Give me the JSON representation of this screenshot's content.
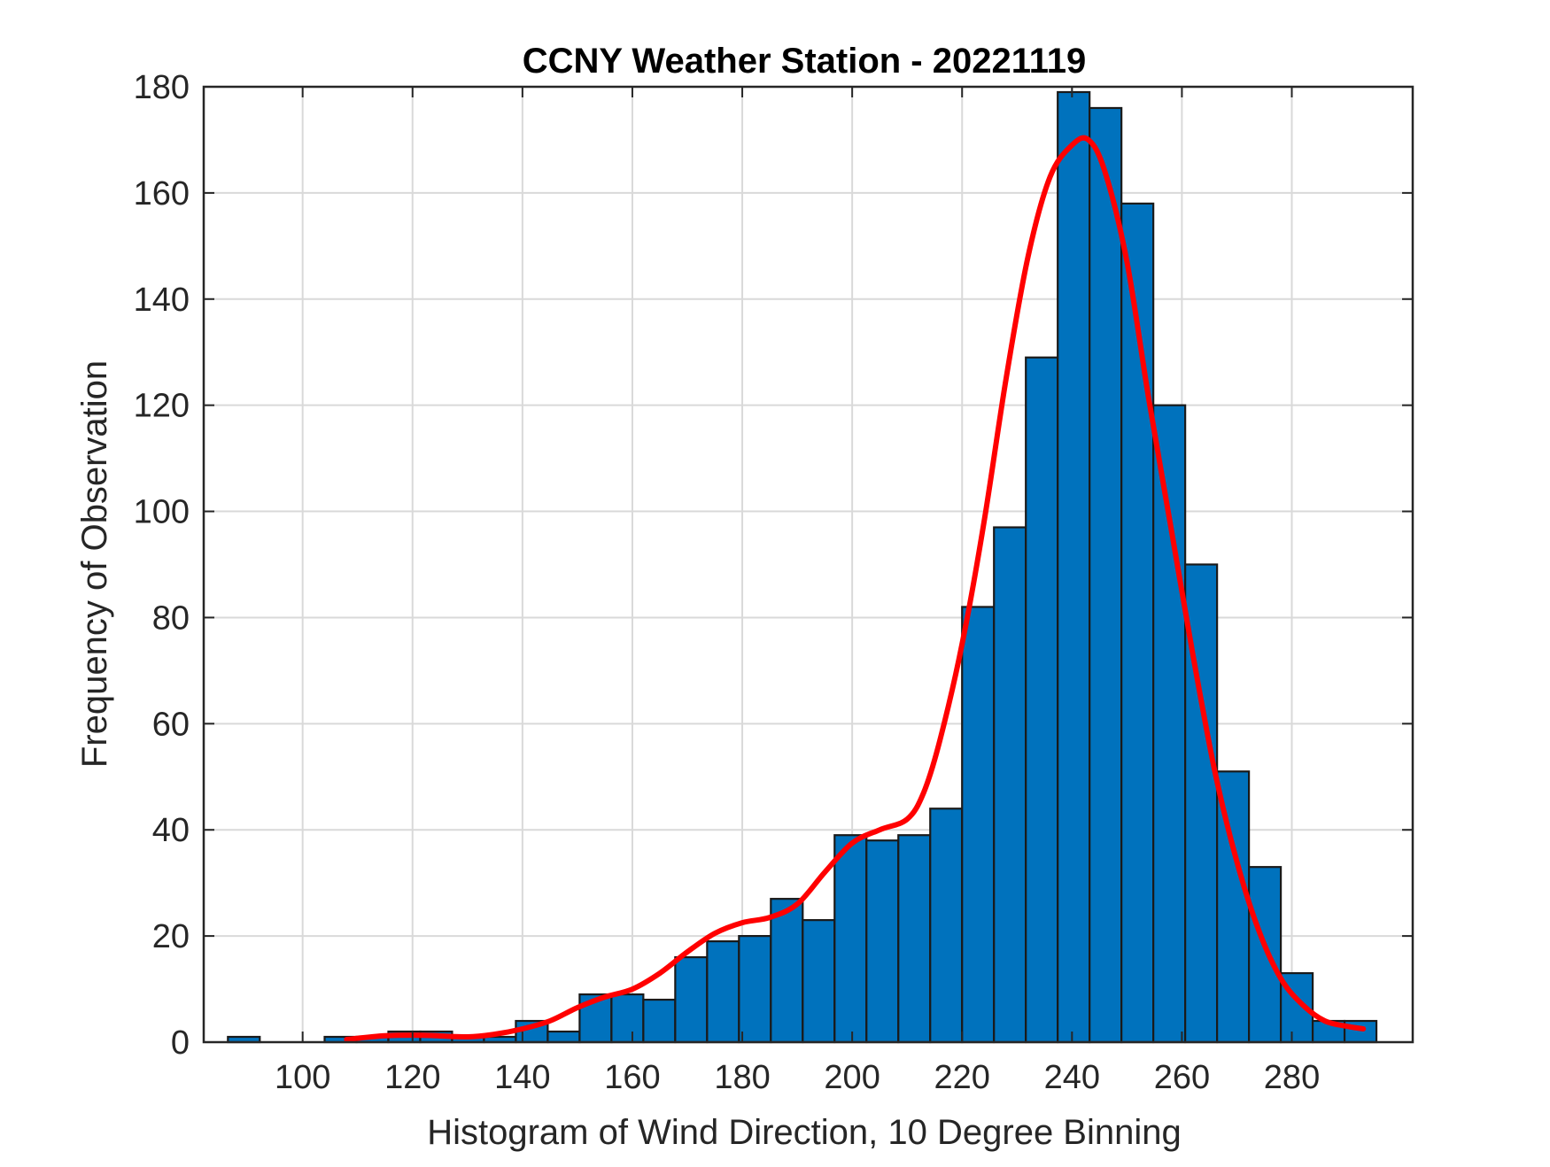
{
  "chart_data": {
    "type": "bar",
    "title": "CCNY Weather Station - 20221119",
    "xlabel": "Histogram of Wind Direction, 10 Degree Binning",
    "ylabel": "Frequency of Observation",
    "xlim": [
      82,
      302
    ],
    "ylim": [
      0,
      180
    ],
    "xticks": [
      100,
      120,
      140,
      160,
      180,
      200,
      220,
      240,
      260,
      280
    ],
    "yticks": [
      0,
      20,
      40,
      60,
      80,
      100,
      120,
      140,
      160,
      180
    ],
    "grid": true,
    "bin_width": 5.8,
    "bin_starts": [
      86.4,
      104.0,
      109.8,
      115.6,
      121.4,
      127.2,
      133.0,
      138.8,
      144.6,
      150.4,
      156.2,
      162.0,
      167.8,
      173.6,
      179.4,
      185.2,
      191.0,
      196.8,
      202.6,
      208.4,
      214.2,
      220.0,
      225.8,
      231.6,
      237.4,
      243.2,
      249.0,
      254.8,
      260.6,
      266.4,
      272.2,
      278.0,
      283.8,
      289.6
    ],
    "values": [
      1,
      1,
      1,
      2,
      2,
      1,
      1,
      4,
      2,
      9,
      9,
      8,
      16,
      19,
      20,
      27,
      23,
      39,
      38,
      39,
      44,
      82,
      97,
      129,
      179,
      176,
      158,
      120,
      90,
      51,
      33,
      13,
      4,
      4
    ],
    "series": [
      {
        "name": "",
        "type": "line",
        "color": "#ff0000",
        "x": [
          108,
          115,
          122,
          130,
          135,
          140,
          145,
          150,
          155,
          160,
          165,
          170,
          175,
          180,
          185,
          190,
          195,
          200,
          205,
          210,
          213,
          216,
          220,
          224,
          228,
          232,
          236,
          240,
          243,
          246,
          250,
          254,
          258,
          262,
          266,
          270,
          274,
          278,
          282,
          286,
          290,
          293
        ],
        "y": [
          0.5,
          1.2,
          1.3,
          1.0,
          1.5,
          2.5,
          4,
          6.5,
          8.5,
          10,
          13,
          17,
          20.5,
          22.5,
          23.5,
          26,
          32,
          37.5,
          40,
          42,
          47,
          57,
          75,
          98,
          125,
          148,
          163,
          169,
          170,
          164,
          147,
          121,
          97,
          73,
          51,
          34,
          21,
          12,
          7,
          4,
          3,
          2.5
        ]
      }
    ],
    "colors": {
      "bar_fill": "#0072bd",
      "bar_edge": "#1a1a1a",
      "curve": "#ff0000",
      "grid": "#d9d9d9",
      "axis": "#262626"
    }
  }
}
